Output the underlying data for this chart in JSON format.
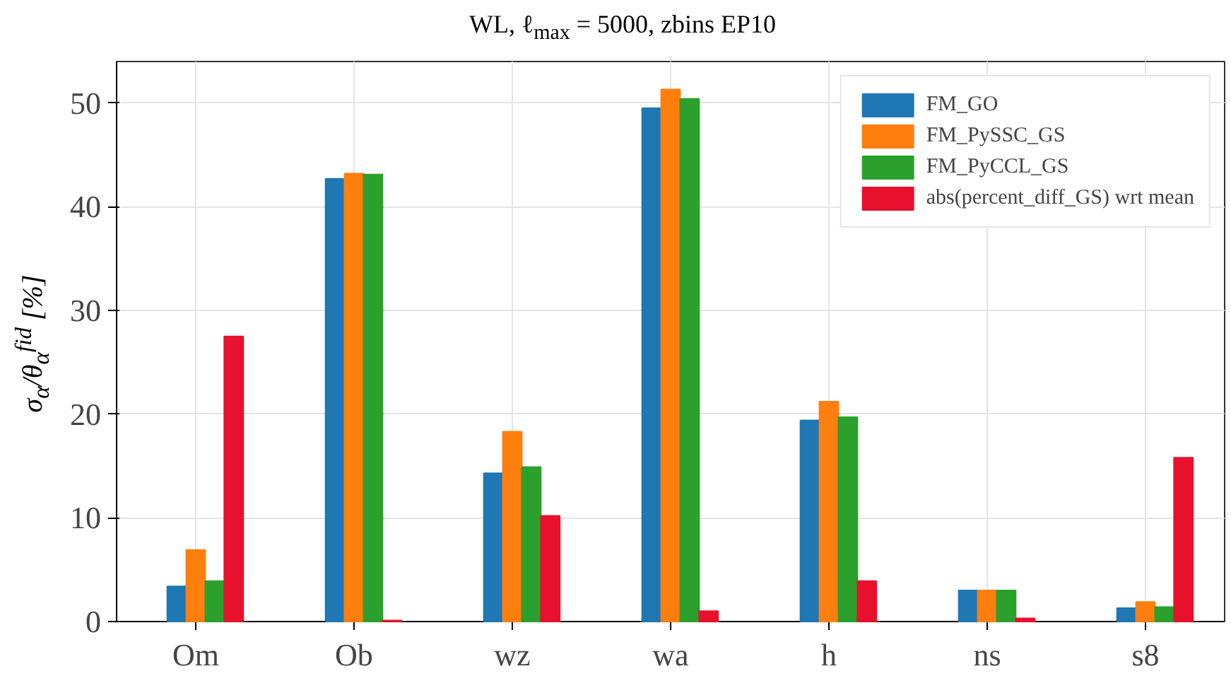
{
  "chart_data": {
    "type": "bar",
    "title": "WL, ℓ$_{max}$ = 5000, zbins EP10",
    "ylabel": "σ$_{α}$/θ$_{α}$$^{fid}$ [%]",
    "categories": [
      "Om",
      "Ob",
      "wz",
      "wa",
      "h",
      "ns",
      "s8"
    ],
    "series": [
      {
        "name": "FM_GO",
        "color": "#1f77b4",
        "values": [
          3.4,
          42.7,
          14.3,
          49.5,
          19.4,
          3.0,
          1.3
        ]
      },
      {
        "name": "FM_PySSC_GS",
        "color": "#ff7f0e",
        "values": [
          6.9,
          43.2,
          18.3,
          51.3,
          21.2,
          3.0,
          1.9
        ]
      },
      {
        "name": "FM_PyCCL_GS",
        "color": "#2ca02c",
        "values": [
          3.9,
          43.1,
          14.9,
          50.4,
          19.7,
          3.0,
          1.4
        ]
      },
      {
        "name": "abs(percent_diff_GS) wrt mean",
        "color": "#e8112d",
        "values": [
          27.5,
          0.1,
          10.2,
          1.0,
          3.9,
          0.3,
          15.8
        ]
      }
    ],
    "ylim": [
      0,
      54
    ],
    "yticks": [
      0,
      10,
      20,
      30,
      40,
      50
    ],
    "grid": true,
    "legend": "top right"
  }
}
